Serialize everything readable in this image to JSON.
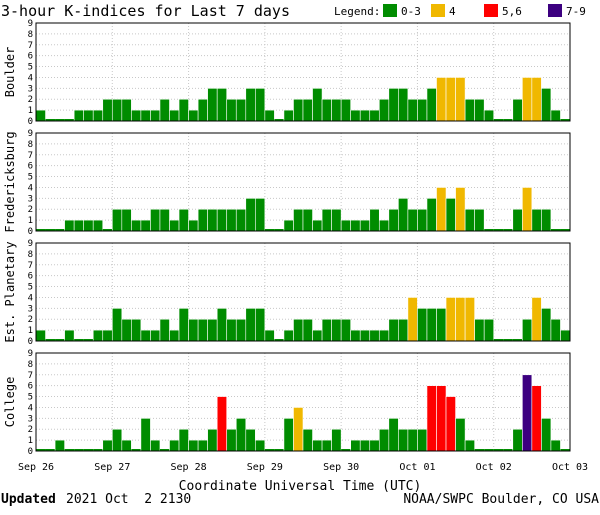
{
  "title": "3-hour K-indices for Last 7 days",
  "legend": {
    "label": "Legend:",
    "items": [
      {
        "label": "0-3",
        "color": "#008c00"
      },
      {
        "label": "4",
        "color": "#f0b800"
      },
      {
        "label": "5,6",
        "color": "#ff0000"
      },
      {
        "label": "7-9",
        "color": "#3c0080"
      }
    ]
  },
  "xlabel": "Coordinate Universal Time (UTC)",
  "footer": {
    "updated_label": "Updated",
    "updated_value": "2021 Oct  2 2130",
    "credit": "NOAA/SWPC Boulder, CO USA"
  },
  "chart_data": {
    "type": "bar",
    "x_ticks": [
      "Sep 26",
      "Sep 27",
      "Sep 28",
      "Sep 29",
      "Sep 30",
      "Oct 01",
      "Oct 02",
      "Oct 03"
    ],
    "y_ticks": [
      0,
      1,
      2,
      3,
      4,
      5,
      6,
      7,
      8,
      9
    ],
    "ylim": [
      0,
      9
    ],
    "intervals_per_day": 8,
    "color_scale": [
      {
        "range": "0-3",
        "color": "#008c00"
      },
      {
        "range": "4",
        "color": "#f0b800"
      },
      {
        "range": "5,6",
        "color": "#ff0000"
      },
      {
        "range": "7-9",
        "color": "#3c0080"
      }
    ],
    "panels": [
      {
        "name": "Boulder",
        "values": [
          1,
          0,
          0,
          0,
          1,
          1,
          1,
          2,
          2,
          2,
          1,
          1,
          1,
          2,
          1,
          2,
          1,
          2,
          3,
          3,
          2,
          2,
          3,
          3,
          1,
          0,
          1,
          2,
          2,
          3,
          2,
          2,
          2,
          1,
          1,
          1,
          2,
          3,
          3,
          2,
          2,
          3,
          4,
          4,
          4,
          2,
          2,
          1,
          0,
          0,
          2,
          4,
          4,
          3,
          1,
          0
        ]
      },
      {
        "name": "Fredericksburg",
        "values": [
          0,
          0,
          0,
          1,
          1,
          1,
          1,
          0,
          2,
          2,
          1,
          1,
          2,
          2,
          1,
          2,
          1,
          2,
          2,
          2,
          2,
          2,
          3,
          3,
          0,
          0,
          1,
          2,
          2,
          1,
          2,
          2,
          1,
          1,
          1,
          2,
          1,
          2,
          3,
          2,
          2,
          3,
          4,
          3,
          4,
          2,
          2,
          0,
          0,
          0,
          2,
          4,
          2,
          2,
          0,
          0
        ]
      },
      {
        "name": "Est. Planetary",
        "values": [
          1,
          0,
          0,
          1,
          0,
          0,
          1,
          1,
          3,
          2,
          2,
          1,
          1,
          2,
          1,
          3,
          2,
          2,
          2,
          3,
          2,
          2,
          3,
          3,
          1,
          0,
          1,
          2,
          2,
          1,
          2,
          2,
          2,
          1,
          1,
          1,
          1,
          2,
          2,
          4,
          3,
          3,
          3,
          4,
          4,
          4,
          2,
          2,
          0,
          0,
          0,
          2,
          4,
          3,
          2,
          1
        ]
      },
      {
        "name": "College",
        "values": [
          0,
          0,
          1,
          0,
          0,
          0,
          0,
          1,
          2,
          1,
          0,
          3,
          1,
          0,
          1,
          2,
          1,
          1,
          2,
          5,
          2,
          3,
          2,
          1,
          0,
          0,
          3,
          4,
          2,
          1,
          1,
          2,
          0,
          1,
          1,
          1,
          2,
          3,
          2,
          2,
          2,
          6,
          6,
          5,
          3,
          1,
          0,
          0,
          0,
          0,
          2,
          7,
          6,
          3,
          1,
          0
        ]
      }
    ]
  }
}
